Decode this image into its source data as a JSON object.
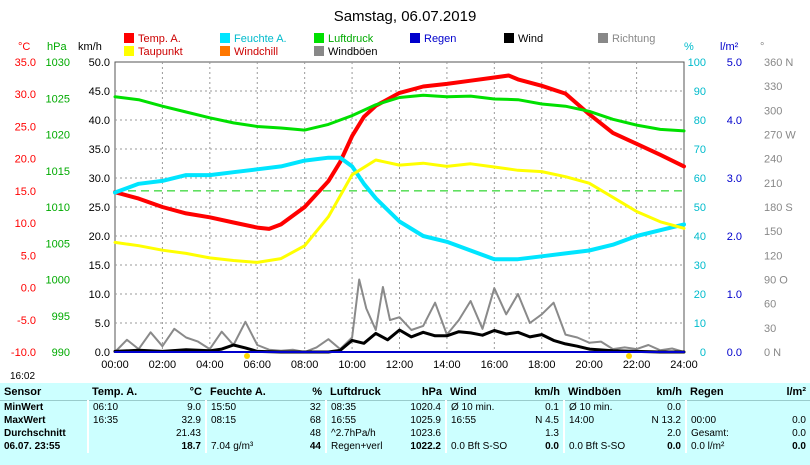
{
  "chart_data": {
    "type": "line",
    "title": "Samstag, 06.07.2019",
    "legend": [
      {
        "name": "Temp. A.",
        "color": "#ff0000"
      },
      {
        "name": "Feuchte A.",
        "color": "#00e5ff"
      },
      {
        "name": "Luftdruck",
        "color": "#00e000"
      },
      {
        "name": "Regen",
        "color": "#0000cc"
      },
      {
        "name": "Wind",
        "color": "#000000"
      },
      {
        "name": "Richtung",
        "color": "#888888"
      },
      {
        "name": "Taupunkt",
        "color": "#ffff00"
      },
      {
        "name": "Windchill",
        "color": "#ff7700"
      },
      {
        "name": "Windböen",
        "color": "#888888"
      }
    ],
    "axes": {
      "temp": {
        "unit": "°C",
        "color": "#ff0000",
        "ticks": [
          "35.0",
          "30.0",
          "25.0",
          "20.0",
          "15.0",
          "10.0",
          "5.0",
          "0.0",
          "-5.0",
          "-10.0"
        ]
      },
      "pressure": {
        "unit": "hPa",
        "color": "#00c000",
        "ticks": [
          "1030",
          "1025",
          "1020",
          "1015",
          "1010",
          "1005",
          "1000",
          "995",
          "990"
        ]
      },
      "wind": {
        "unit": "km/h",
        "color": "#000000",
        "ticks": [
          "50.0",
          "45.0",
          "40.0",
          "35.0",
          "30.0",
          "25.0",
          "20.0",
          "15.0",
          "10.0",
          "5.0",
          "0.0"
        ]
      },
      "humidity": {
        "unit": "%",
        "color": "#00cccc",
        "ticks": [
          "100",
          "90",
          "80",
          "70",
          "60",
          "50",
          "40",
          "30",
          "20",
          "10",
          "0"
        ]
      },
      "rain": {
        "unit": "l/m²",
        "color": "#0000cc",
        "ticks": [
          "5.0",
          "4.0",
          "3.0",
          "2.0",
          "1.0",
          "0.0"
        ]
      },
      "direction": {
        "unit": "°",
        "color": "#888888",
        "ticks": [
          "360 N",
          "330",
          "300",
          "270 W",
          "240",
          "210",
          "180 S",
          "150",
          "120",
          "90 O",
          "60",
          "30",
          "0 N"
        ]
      }
    },
    "x_ticks": [
      "00:00",
      "02:00",
      "04:00",
      "06:00",
      "08:00",
      "10:00",
      "12:00",
      "14:00",
      "16:00",
      "18:00",
      "20:00",
      "22:00",
      "24:00"
    ],
    "xlim": [
      0,
      24
    ],
    "temp_lim": [
      -10,
      35
    ],
    "series": [
      {
        "name": "Temp. A.",
        "axis": "temp",
        "color": "#ff0000",
        "width": 4,
        "x": [
          0,
          1,
          2,
          3,
          4,
          5,
          6,
          6.5,
          7,
          8,
          9,
          9.5,
          10,
          10.5,
          11,
          12,
          13,
          14,
          15,
          16,
          16.6,
          17,
          18,
          19,
          20,
          21,
          22,
          23,
          24
        ],
        "y": [
          14.8,
          13.8,
          12.5,
          11.5,
          10.9,
          10.1,
          9.3,
          9.1,
          9.8,
          12.5,
          16.5,
          19.5,
          23.5,
          26.5,
          28.2,
          30.2,
          31.2,
          31.6,
          32.1,
          32.6,
          32.9,
          32.3,
          31.3,
          30.1,
          26.9,
          24.0,
          22.3,
          20.6,
          18.8
        ]
      },
      {
        "name": "Feuchte A.",
        "axis": "humidity",
        "color": "#00e5ff",
        "width": 4,
        "x": [
          0,
          1,
          2,
          3,
          4,
          5,
          6,
          7,
          8,
          9,
          9.5,
          10,
          10.5,
          11,
          12,
          13,
          14,
          15,
          16,
          17,
          18,
          19,
          20,
          21,
          22,
          23,
          24
        ],
        "y": [
          55,
          58,
          59,
          61,
          61,
          62,
          63,
          64,
          66,
          67,
          67,
          64,
          58,
          53,
          45,
          40,
          38,
          35,
          32,
          32,
          33,
          34,
          35,
          37,
          40,
          42,
          44
        ]
      },
      {
        "name": "Luftdruck",
        "axis": "pressure",
        "color": "#00e000",
        "width": 3,
        "x": [
          0,
          1,
          2,
          3,
          4,
          5,
          6,
          7,
          8,
          9,
          10,
          11,
          12,
          13,
          14,
          15,
          16,
          17,
          18,
          19,
          20,
          21,
          22,
          23,
          24
        ],
        "y": [
          1025.2,
          1024.8,
          1023.9,
          1023.1,
          1022.3,
          1021.6,
          1021.1,
          1020.9,
          1020.6,
          1021.4,
          1022.6,
          1024.1,
          1025.1,
          1025.4,
          1025.2,
          1025.3,
          1024.9,
          1024.8,
          1024.2,
          1023.9,
          1023.2,
          1022.1,
          1021.3,
          1020.7,
          1020.5
        ]
      },
      {
        "name": "Taupunkt",
        "axis": "temp",
        "color": "#ffff00",
        "width": 3,
        "x": [
          0,
          1,
          2,
          3,
          4,
          5,
          6,
          7,
          8,
          9,
          10,
          11,
          12,
          13,
          14,
          15,
          16,
          17,
          18,
          19,
          20,
          21,
          22,
          23,
          24
        ],
        "y": [
          7.0,
          6.5,
          5.8,
          5.3,
          4.6,
          4.2,
          3.9,
          4.5,
          6.5,
          11.0,
          17.5,
          19.8,
          19.0,
          19.3,
          18.8,
          19.2,
          18.7,
          18.2,
          18.0,
          17.2,
          16.2,
          14.0,
          11.8,
          10.2,
          9.2
        ]
      },
      {
        "name": "Windböen",
        "axis": "wind",
        "color": "#8a8a8a",
        "width": 2,
        "x": [
          0,
          0.5,
          1,
          1.5,
          2,
          2.5,
          3,
          3.5,
          4,
          4.5,
          5,
          5.5,
          6,
          6.5,
          7,
          7.5,
          8,
          8.5,
          9,
          9.5,
          10,
          10.3,
          10.6,
          11,
          11.3,
          11.6,
          12,
          12.5,
          13,
          13.5,
          14,
          14.5,
          15,
          15.5,
          16,
          16.5,
          17,
          17.5,
          18,
          18.5,
          19,
          19.5,
          20,
          20.5,
          21,
          21.5,
          22,
          22.5,
          23,
          23.5,
          24
        ],
        "y": [
          0,
          2.1,
          0.5,
          3.4,
          1,
          4,
          2.5,
          1.8,
          0.5,
          3.5,
          1.2,
          5.2,
          1.2,
          0.4,
          0.2,
          0.4,
          0,
          0.8,
          2.2,
          0.5,
          2.5,
          12.5,
          7.5,
          3.8,
          11.2,
          5.5,
          6,
          3.8,
          4.5,
          8.5,
          3,
          5.5,
          8.8,
          4,
          11,
          6.5,
          10,
          5,
          6.5,
          8.5,
          3,
          2.5,
          1.6,
          1.8,
          0.5,
          0.8,
          0.5,
          1.2,
          0.3,
          0.6,
          0
        ]
      },
      {
        "name": "Wind",
        "axis": "wind",
        "color": "#000000",
        "width": 3,
        "x": [
          0,
          1,
          2,
          3,
          4,
          4.5,
          5,
          5.5,
          6,
          7,
          8,
          9,
          9.5,
          10,
          10.5,
          11,
          11.5,
          12,
          12.5,
          13,
          13.5,
          14,
          14.5,
          15,
          15.5,
          16,
          16.5,
          17,
          17.5,
          18,
          18.5,
          19,
          19.5,
          20,
          21,
          22,
          23,
          24
        ],
        "y": [
          0.1,
          0.3,
          0.1,
          0.4,
          0.2,
          0.5,
          1.2,
          0.7,
          0.1,
          0,
          0,
          0,
          0.3,
          2.0,
          1.5,
          3.2,
          2.1,
          3.8,
          2.6,
          3.4,
          2.8,
          2.8,
          3.5,
          3.3,
          2.9,
          3.7,
          3.1,
          3.4,
          2.6,
          3.0,
          2.0,
          1.4,
          1.0,
          0.5,
          0.2,
          0.1,
          0,
          0
        ]
      },
      {
        "name": "Regen",
        "axis": "rain",
        "color": "#0000cc",
        "width": 2,
        "x": [
          0,
          24
        ],
        "y": [
          0.0,
          0.0
        ]
      }
    ],
    "reference_line": {
      "axis": "temp",
      "value": 15.0,
      "color": "#00cc00"
    },
    "grid": true
  },
  "time_label": "16:02",
  "table": {
    "headers": [
      "Sensor",
      "Temp. A.",
      "°C",
      "Feuchte A.",
      "%",
      "Luftdruck",
      "hPa",
      "Wind",
      "km/h",
      "Windböen",
      "km/h",
      "Regen",
      "l/m²"
    ],
    "rows": [
      [
        "MinWert",
        "06:10",
        "9.0",
        "15:50",
        "32",
        "08:35",
        "1020.4",
        "Ø 10 min.",
        "0.1",
        "Ø 10 min.",
        "0.0",
        "",
        ""
      ],
      [
        "MaxWert",
        "16:35",
        "32.9",
        "08:15",
        "68",
        "16:55",
        "1025.9",
        "16:55",
        "N 4.5",
        "14:00",
        "N 13.2",
        "00:00",
        "0.0"
      ],
      [
        "Durchschnitt",
        "",
        "21.43",
        "",
        "48",
        "^2.7hPa/h",
        "1023.6",
        "",
        "1.3",
        "",
        "2.0",
        "Gesamt:",
        "0.0"
      ],
      [
        "06.07. 23:55",
        "",
        "18.7",
        "7.04 g/m³",
        "44",
        "Regen+verl",
        "1022.2",
        "0.0 Bft S-SO",
        "0.0",
        "0.0 Bft S-SO",
        "0.0",
        "0.0 l/m²",
        "0.0"
      ]
    ]
  }
}
